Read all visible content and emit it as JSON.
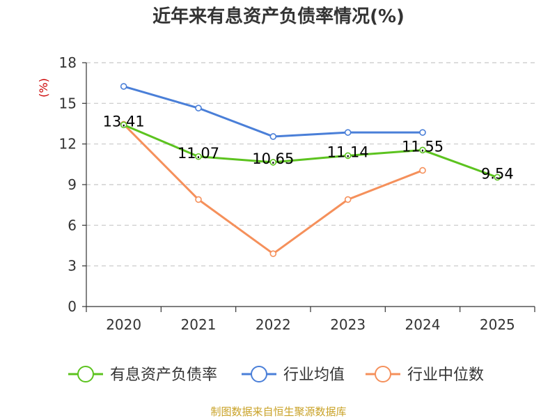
{
  "chart_data": {
    "type": "line",
    "title": "近年来有息资产负债率情况(%)",
    "ylabel": "(%)",
    "xlabel": "",
    "categories": [
      "2020",
      "2021",
      "2022",
      "2023",
      "2024",
      "2025"
    ],
    "ylim": [
      0,
      18
    ],
    "yticks": [
      0,
      3,
      6,
      9,
      12,
      15,
      18
    ],
    "grid": true,
    "legend_position": "bottom",
    "series": [
      {
        "name": "有息资产负债率",
        "color": "#5cc31f",
        "values": [
          13.41,
          11.07,
          10.65,
          11.14,
          11.55,
          9.54
        ],
        "labels": [
          "13.41",
          "11.07",
          "10.65",
          "11.14",
          "11.55",
          "9.54"
        ]
      },
      {
        "name": "行业均值",
        "color": "#4a7fd8",
        "values": [
          16.25,
          14.65,
          12.55,
          12.85,
          12.85,
          null
        ]
      },
      {
        "name": "行业中位数",
        "color": "#f5905b",
        "values": [
          13.45,
          7.9,
          3.9,
          7.9,
          10.05,
          null
        ]
      }
    ],
    "source": "制图数据来自恒生聚源数据库"
  }
}
